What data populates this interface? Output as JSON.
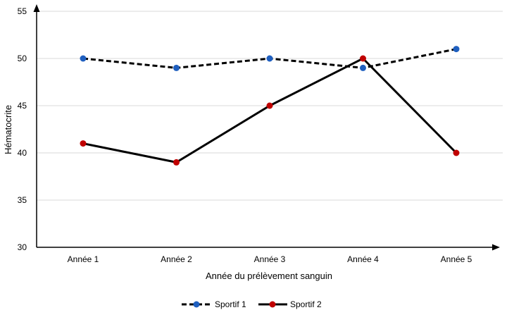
{
  "chart_data": {
    "type": "line",
    "title": "",
    "xlabel": "Année du prélèvement sanguin",
    "ylabel": "Hématocrite",
    "categories": [
      "Année 1",
      "Année 2",
      "Année 3",
      "Année 4",
      "Année 5"
    ],
    "ylim": [
      30,
      55
    ],
    "yticks": [
      30,
      35,
      40,
      45,
      50,
      55
    ],
    "grid": true,
    "legend_position": "bottom",
    "series": [
      {
        "name": "Sportif 1",
        "values": [
          50,
          49,
          50,
          49,
          51
        ],
        "line_style": "dashed",
        "line_color": "#000000",
        "marker_color": "#1f5fbf"
      },
      {
        "name": "Sportif 2",
        "values": [
          41,
          39,
          45,
          50,
          40
        ],
        "line_style": "solid",
        "line_color": "#000000",
        "marker_color": "#c00000"
      }
    ]
  }
}
